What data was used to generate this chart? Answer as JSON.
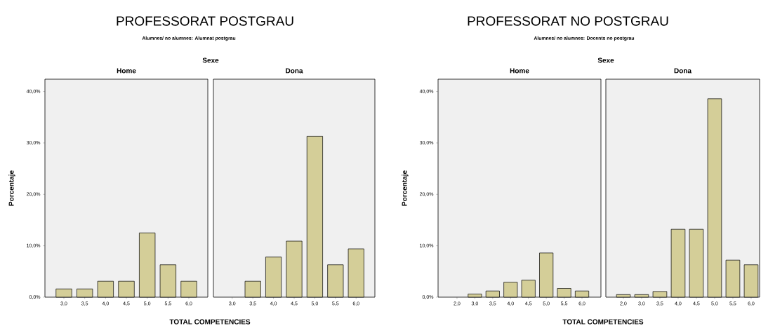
{
  "chart_data": [
    {
      "type": "bar",
      "title": "Home",
      "annotations": [
        "PROFESSORAT  POSTGRAU",
        "Alumnes/ no alumnes: Alumnat postgrau",
        "Sexe"
      ],
      "xlabel": "TOTAL COMPETENCIES",
      "ylabel": "Porcentaje",
      "categories": [
        "3,0",
        "3,5",
        "4,0",
        "4,5",
        "5,0",
        "5,5",
        "6,0"
      ],
      "values": [
        1.6,
        1.6,
        3.1,
        3.1,
        12.5,
        6.3,
        3.1
      ],
      "color": "#d4ce98",
      "ylim": [
        0,
        42.4
      ],
      "yticks": [
        {
          "value": 0,
          "label": "0,0%"
        },
        {
          "value": 10,
          "label": "10,0%"
        },
        {
          "value": 20,
          "label": "20,0%"
        },
        {
          "value": 30,
          "label": "30,0%"
        },
        {
          "value": 40,
          "label": "40,0%"
        }
      ]
    },
    {
      "type": "bar",
      "title": "Dona",
      "tick_labels": "x",
      "categories": [
        "3,0",
        "3,5",
        "4,0",
        "4,5",
        "5,0",
        "5,5",
        "6,0"
      ],
      "values": [
        0,
        3.1,
        7.8,
        10.9,
        31.3,
        6.3,
        9.4
      ],
      "color": "#d4ce98",
      "ylim": [
        0,
        42.4
      ]
    },
    {
      "type": "bar",
      "title": "Home",
      "annotations": [
        "PROFESSORAT NO POSTGRAU",
        "Alumnes/ no alumnes: Docents no postgrau",
        "Sexe"
      ],
      "xlabel": "TOTAL COMPETENCIES",
      "ylabel": "Porcentaje",
      "categories": [
        "2,0",
        "3,0",
        "3,5",
        "4,0",
        "4,5",
        "5,0",
        "5,5",
        "6,0"
      ],
      "values": [
        0,
        0.6,
        1.2,
        2.9,
        3.3,
        8.6,
        1.7,
        1.2
      ],
      "color": "#d4ce98",
      "ylim": [
        0,
        42.4
      ],
      "yticks": [
        {
          "value": 0,
          "label": "0,0%"
        },
        {
          "value": 10,
          "label": "10,0%"
        },
        {
          "value": 20,
          "label": "20,0%"
        },
        {
          "value": 30,
          "label": "30,0%"
        },
        {
          "value": 40,
          "label": "40,0%"
        }
      ]
    },
    {
      "type": "bar",
      "title": "Dona",
      "tick_labels": "x",
      "categories": [
        "2,0",
        "3,0",
        "3,5",
        "4,0",
        "4,5",
        "5,0",
        "5,5",
        "6,0"
      ],
      "values": [
        0.5,
        0.5,
        1.1,
        13.2,
        13.2,
        38.6,
        7.2,
        6.3
      ],
      "color": "#d4ce98",
      "ylim": [
        0,
        42.4
      ]
    }
  ]
}
